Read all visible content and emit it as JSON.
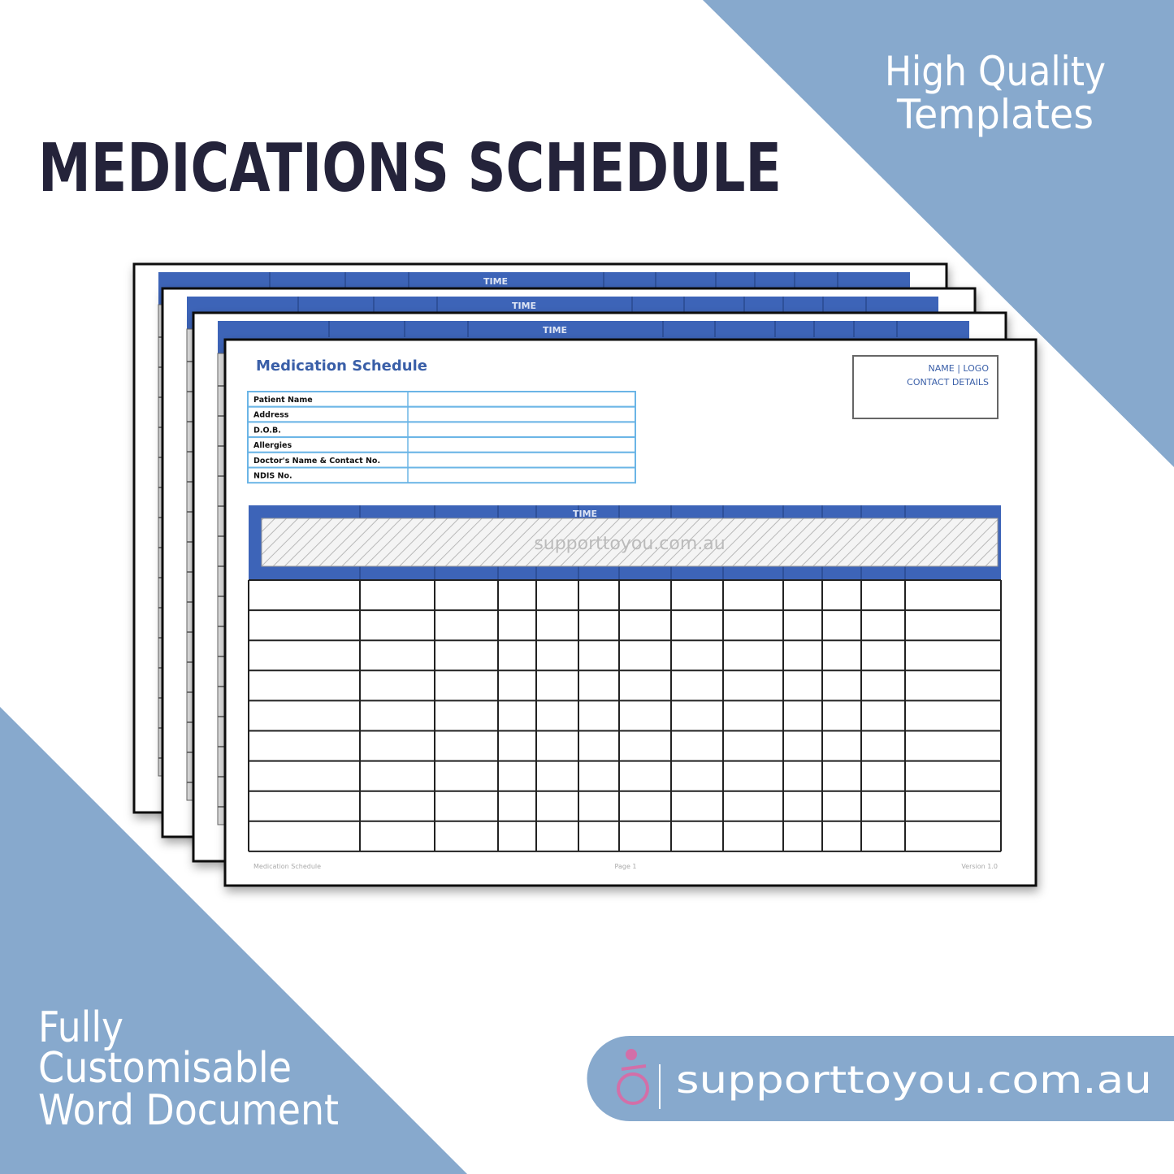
{
  "header": {
    "title": "MEDICATIONS SCHEDULE",
    "badge": [
      "High Quality",
      "Templates"
    ]
  },
  "back_pages": {
    "table_header": "TIME"
  },
  "document": {
    "title": "Medication Schedule",
    "logo_box": [
      "NAME | LOGO",
      "CONTACT DETAILS"
    ],
    "fields": [
      "Patient Name",
      "Address",
      "D.O.B.",
      "Allergies",
      "Doctor's Name & Contact No.",
      "NDIS No."
    ],
    "table_header": "TIME",
    "watermark": "supporttoyou.com.au",
    "footer": {
      "left": "Medication Schedule",
      "center": "Page 1",
      "right": "Version 1.0"
    }
  },
  "footer": {
    "features": [
      "Fully",
      "Customisable",
      "Word Document"
    ],
    "website": "supporttoyou.com.au"
  }
}
